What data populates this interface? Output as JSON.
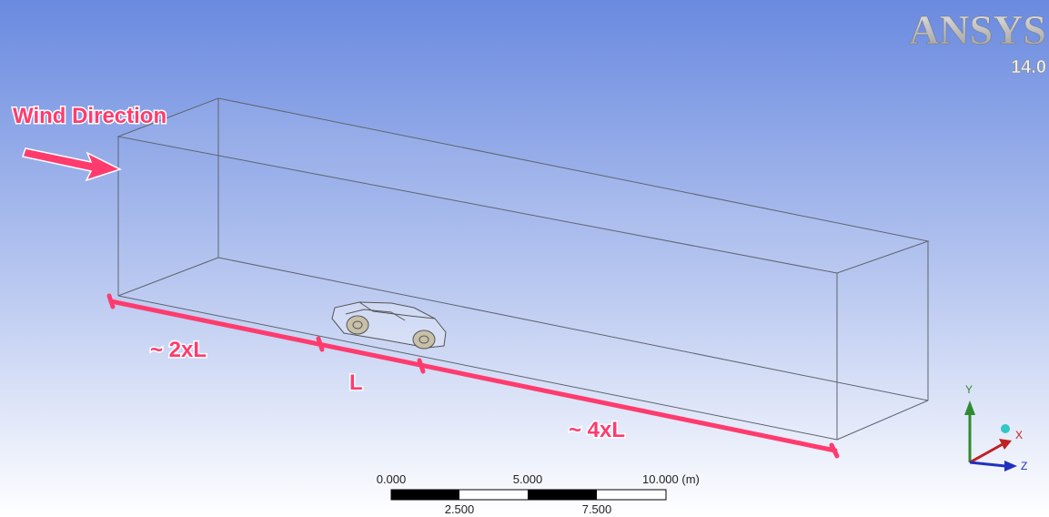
{
  "logo": {
    "name": "ANSYS",
    "version": "14.0"
  },
  "annotations": {
    "wind": "Wind Direction",
    "upstream": "~ 2xL",
    "body": "L",
    "downstream": "~ 4xL"
  },
  "scale_bar": {
    "top_labels": [
      "0.000",
      "5.000",
      "10.000 (m)"
    ],
    "bottom_labels": [
      "2.500",
      "7.500"
    ]
  },
  "triad": {
    "y": "Y",
    "x": "X",
    "z": "Z"
  }
}
